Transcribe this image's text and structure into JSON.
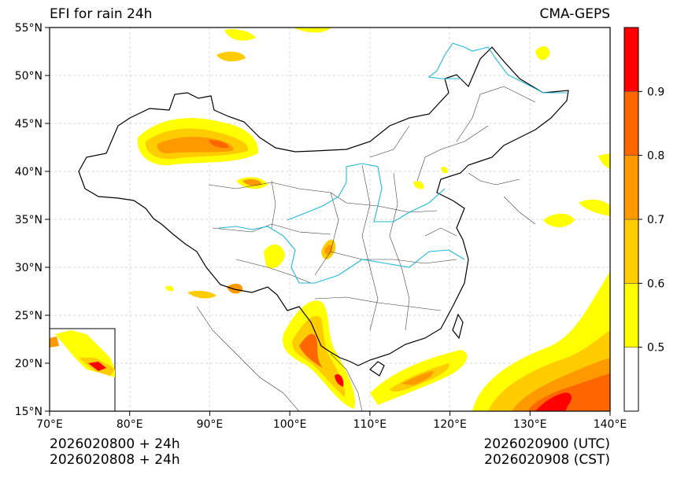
{
  "title": {
    "left": "EFI for rain 24h",
    "right": "CMA-GEPS"
  },
  "footer": {
    "left_line1": "2026020800 + 24h",
    "left_line2": "2026020808 + 24h",
    "right_line1": "2026020900 (UTC)",
    "right_line2": "2026020908 (CST)"
  },
  "axes": {
    "lat_labels": [
      "55°N",
      "50°N",
      "45°N",
      "40°N",
      "35°N",
      "30°N",
      "25°N",
      "20°N",
      "15°N"
    ],
    "lon_labels": [
      "70°E",
      "80°E",
      "90°E",
      "100°E",
      "110°E",
      "120°E",
      "130°E",
      "140°E"
    ],
    "lat_range": [
      15,
      55
    ],
    "lon_range": [
      70,
      140
    ]
  },
  "colorbar": {
    "levels": [
      "0.5",
      "0.6",
      "0.7",
      "0.8",
      "0.9"
    ],
    "colors": [
      "#ffffff",
      "#ffff00",
      "#ffcc00",
      "#ff9900",
      "#ff6600",
      "#ff0000"
    ]
  },
  "colors": {
    "river": "#1fb8d8",
    "border": "#000000",
    "grid": "#c8c8c8"
  }
}
